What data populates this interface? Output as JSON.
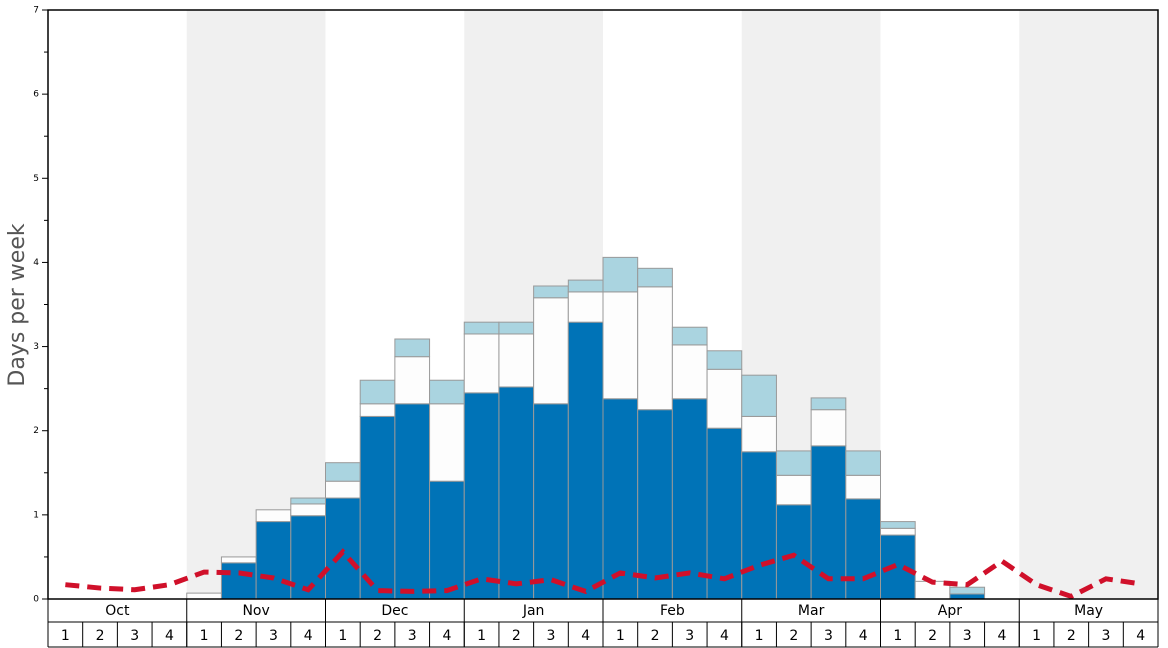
{
  "chart_data": {
    "type": "stacked-bar",
    "y_label": "Days per week",
    "months": [
      "Oct",
      "Nov",
      "Dec",
      "Jan",
      "Feb",
      "Mar",
      "Apr",
      "May"
    ],
    "categories": [
      "1",
      "2",
      "3",
      "4",
      "1",
      "2",
      "3",
      "4",
      "1",
      "2",
      "3",
      "4",
      "1",
      "2",
      "3",
      "4",
      "1",
      "2",
      "3",
      "4",
      "1",
      "2",
      "3",
      "4",
      "1",
      "2",
      "3",
      "4",
      "1",
      "2",
      "3",
      "4"
    ],
    "ylim": [
      0,
      7
    ],
    "yticks": [
      0,
      1,
      2,
      3,
      4,
      5,
      6,
      7
    ],
    "yminorticks": [
      0.5,
      1.5,
      2.5,
      3.5,
      4.5,
      5.5,
      6.5
    ],
    "series": [
      {
        "color": "#0073b7",
        "values": [
          0,
          0,
          0,
          0,
          0,
          0.43,
          0.92,
          0.99,
          1.2,
          2.17,
          2.32,
          1.4,
          2.45,
          2.52,
          2.32,
          3.29,
          2.38,
          2.25,
          2.38,
          2.03,
          1.75,
          1.12,
          1.82,
          1.19,
          0.76,
          0,
          0.06,
          0,
          0,
          0,
          0,
          0
        ]
      },
      {
        "color": "#fdfdfd",
        "values": [
          0,
          0,
          0,
          0,
          0.07,
          0.07,
          0.14,
          0.14,
          0.2,
          0.15,
          0.56,
          0.92,
          0.7,
          0.63,
          1.26,
          0.36,
          1.27,
          1.46,
          0.64,
          0.7,
          0.42,
          0.35,
          0.43,
          0.28,
          0.08,
          0.21,
          0,
          0,
          0,
          0,
          0,
          0
        ]
      },
      {
        "color": "#aad4e0",
        "values": [
          0,
          0,
          0,
          0,
          0,
          0,
          0,
          0.07,
          0.22,
          0.28,
          0.21,
          0.28,
          0.14,
          0.14,
          0.14,
          0.14,
          0.41,
          0.22,
          0.21,
          0.22,
          0.49,
          0.29,
          0.14,
          0.29,
          0.08,
          0,
          0.08,
          0,
          0,
          0,
          0,
          0
        ]
      }
    ],
    "line": {
      "type": "line",
      "color": "#d0102a",
      "values": [
        0.17,
        0.13,
        0.11,
        0.17,
        0.32,
        0.31,
        0.25,
        0.11,
        0.56,
        0.1,
        0.09,
        0.1,
        0.24,
        0.18,
        0.23,
        0.09,
        0.31,
        0.25,
        0.31,
        0.24,
        0.4,
        0.52,
        0.24,
        0.24,
        0.41,
        0.2,
        0.17,
        0.45,
        0.17,
        0.03,
        0.24,
        0.18
      ]
    }
  }
}
